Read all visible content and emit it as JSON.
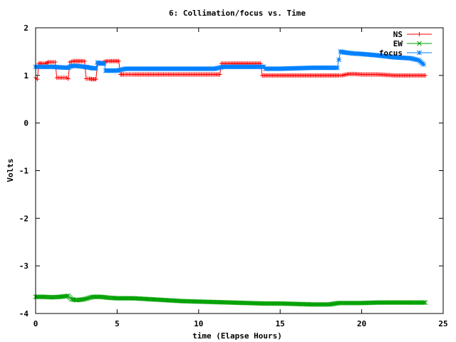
{
  "chart_data": {
    "type": "line",
    "title": "6: Collimation/focus vs. Time",
    "xlabel": "time (Elapse Hours)",
    "ylabel": "Volts",
    "xlim": [
      0,
      25
    ],
    "ylim": [
      -4,
      2
    ],
    "xticks": [
      0,
      5,
      10,
      15,
      20,
      25
    ],
    "yticks": [
      -4,
      -3,
      -2,
      -1,
      0,
      1,
      2
    ],
    "grid": false,
    "legend_position": "top-right",
    "series": [
      {
        "name": "NS",
        "color": "#ff0000",
        "marker": "plus",
        "x": [
          0,
          0.1,
          0.2,
          0.4,
          0.6,
          0.8,
          1.0,
          1.2,
          1.3,
          1.5,
          1.7,
          1.9,
          2.0,
          2.1,
          2.3,
          2.6,
          2.9,
          3.0,
          3.1,
          3.3,
          3.5,
          3.7,
          3.8,
          4.0,
          4.2,
          4.4,
          4.5,
          4.8,
          5.1,
          5.2,
          5.4,
          6.0,
          7.0,
          8.0,
          9.0,
          10.0,
          11.0,
          11.3,
          11.4,
          12.0,
          13.0,
          13.8,
          13.9,
          15.0,
          16.0,
          17.0,
          18.0,
          18.6,
          18.8,
          19.2,
          19.6,
          20.0,
          21.0,
          22.0,
          23.0,
          23.5,
          23.9
        ],
        "y": [
          0.95,
          0.92,
          1.25,
          1.25,
          1.25,
          1.28,
          1.28,
          1.28,
          0.95,
          0.95,
          0.95,
          0.95,
          0.93,
          1.28,
          1.3,
          1.3,
          1.3,
          1.3,
          0.93,
          0.93,
          0.92,
          0.92,
          1.25,
          1.25,
          1.28,
          1.3,
          1.3,
          1.3,
          1.3,
          1.02,
          1.02,
          1.02,
          1.02,
          1.02,
          1.02,
          1.02,
          1.02,
          1.02,
          1.25,
          1.25,
          1.25,
          1.25,
          1.0,
          1.0,
          1.0,
          1.0,
          1.0,
          1.0,
          1.0,
          1.03,
          1.03,
          1.02,
          1.02,
          1.0,
          1.0,
          1.0,
          1.0
        ]
      },
      {
        "name": "EW",
        "color": "#00a000",
        "marker": "cross",
        "x": [
          0,
          0.5,
          1.0,
          1.5,
          2.0,
          2.2,
          2.5,
          3.0,
          3.5,
          4.0,
          4.5,
          5.0,
          6.0,
          7.0,
          8.0,
          9.0,
          10.0,
          11.0,
          12.0,
          13.0,
          14.0,
          15.0,
          16.0,
          17.0,
          18.0,
          18.6,
          19.0,
          20.0,
          21.0,
          22.0,
          23.0,
          23.9
        ],
        "y": [
          -3.65,
          -3.65,
          -3.66,
          -3.65,
          -3.63,
          -3.7,
          -3.72,
          -3.7,
          -3.65,
          -3.65,
          -3.67,
          -3.68,
          -3.68,
          -3.7,
          -3.72,
          -3.74,
          -3.75,
          -3.76,
          -3.77,
          -3.78,
          -3.79,
          -3.79,
          -3.8,
          -3.81,
          -3.81,
          -3.78,
          -3.78,
          -3.78,
          -3.77,
          -3.77,
          -3.77,
          -3.77
        ]
      },
      {
        "name": "focus",
        "color": "#0080ff",
        "marker": "star",
        "x": [
          0,
          0.5,
          1.0,
          1.5,
          2.0,
          2.2,
          2.5,
          3.0,
          3.2,
          3.5,
          3.7,
          3.8,
          4.0,
          4.2,
          4.3,
          4.5,
          5.0,
          5.5,
          6.0,
          7.0,
          8.0,
          9.0,
          10.0,
          11.0,
          11.5,
          12.0,
          13.0,
          14.0,
          14.1,
          15.0,
          16.0,
          17.0,
          18.0,
          18.5,
          18.7,
          19.0,
          19.5,
          20.0,
          21.0,
          22.0,
          23.0,
          23.5,
          23.8
        ],
        "y": [
          1.18,
          1.18,
          1.18,
          1.17,
          1.16,
          1.2,
          1.2,
          1.18,
          1.17,
          1.15,
          1.15,
          1.27,
          1.25,
          1.25,
          1.1,
          1.1,
          1.1,
          1.14,
          1.14,
          1.14,
          1.14,
          1.14,
          1.14,
          1.14,
          1.18,
          1.18,
          1.18,
          1.18,
          1.14,
          1.14,
          1.15,
          1.16,
          1.16,
          1.16,
          1.5,
          1.48,
          1.46,
          1.45,
          1.42,
          1.38,
          1.36,
          1.32,
          1.23
        ]
      }
    ]
  }
}
